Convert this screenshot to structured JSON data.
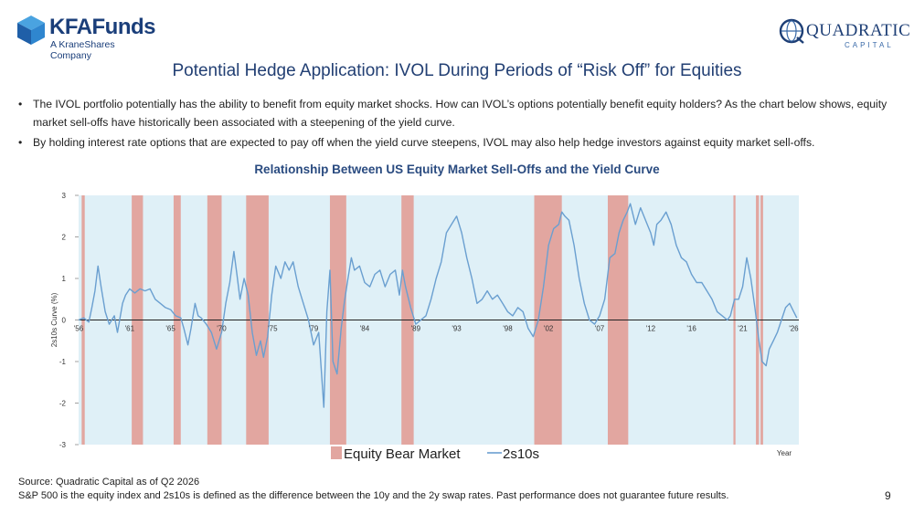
{
  "header": {
    "kfa_logo_text": "KFAFunds",
    "kfa_logo_sub": "A KraneShares Company",
    "quad_logo_text": "QUADRATIC",
    "quad_logo_sub": "CAPITAL"
  },
  "title": "Potential Hedge Application: IVOL During Periods of “Risk Off” for Equities",
  "bullets": [
    "The IVOL portfolio potentially has the ability to benefit from equity market shocks. How can IVOL’s options potentially benefit equity holders? As the chart below shows, equity market sell-offs have historically been associated with a steepening of the yield curve.",
    "By holding interest rate options that are expected to pay off when the yield curve steepens, IVOL may also help hedge investors against equity market sell-offs."
  ],
  "bullet_symbol": "•",
  "chart_data": {
    "type": "line",
    "title": "Relationship Between US Equity Market Sell-Offs and the Yield Curve",
    "xlabel": "Year",
    "ylabel": "2s10s Curve (%)",
    "xlim": [
      1956,
      2026.5
    ],
    "ylim": [
      -3,
      3
    ],
    "x_ticks": [
      {
        "x": 1956,
        "label": "'56"
      },
      {
        "x": 1961,
        "label": "'61"
      },
      {
        "x": 1965,
        "label": "'65"
      },
      {
        "x": 1970,
        "label": "'70"
      },
      {
        "x": 1975,
        "label": "'75"
      },
      {
        "x": 1979,
        "label": "'79"
      },
      {
        "x": 1984,
        "label": "'84"
      },
      {
        "x": 1989,
        "label": "'89"
      },
      {
        "x": 1993,
        "label": "'93"
      },
      {
        "x": 1998,
        "label": "'98"
      },
      {
        "x": 2002,
        "label": "'02"
      },
      {
        "x": 2007,
        "label": "'07"
      },
      {
        "x": 2012,
        "label": "'12"
      },
      {
        "x": 2016,
        "label": "'16"
      },
      {
        "x": 2021,
        "label": "'21"
      },
      {
        "x": 2026,
        "label": "'26"
      }
    ],
    "y_ticks": [
      3,
      2,
      1,
      0,
      -1,
      -2,
      -3
    ],
    "legend": [
      "Equity Bear Market",
      "2s10s"
    ],
    "legend_position": "bottom",
    "colors": {
      "plot_bg": "#dff0f7",
      "bear": "#e2a6a0",
      "line": "#6a9fd0",
      "zero": "#222222"
    },
    "bear_markets": [
      [
        1956.3,
        1956.6
      ],
      [
        1961.2,
        1962.3
      ],
      [
        1965.3,
        1966.0
      ],
      [
        1968.6,
        1970.0
      ],
      [
        1972.4,
        1974.6
      ],
      [
        1980.6,
        1982.2
      ],
      [
        1987.6,
        1988.8
      ],
      [
        2000.6,
        2003.3
      ],
      [
        2007.8,
        2009.8
      ],
      [
        2020.1,
        2020.3
      ],
      [
        2022.3,
        2022.6
      ],
      [
        2022.75,
        2023.0
      ]
    ],
    "series": [
      {
        "name": "2s10s",
        "points": [
          [
            1956.0,
            0.0
          ],
          [
            1956.5,
            0.05
          ],
          [
            1957.0,
            -0.05
          ],
          [
            1957.3,
            0.3
          ],
          [
            1957.6,
            0.7
          ],
          [
            1957.9,
            1.3
          ],
          [
            1958.2,
            0.8
          ],
          [
            1958.6,
            0.2
          ],
          [
            1959.0,
            -0.1
          ],
          [
            1959.5,
            0.1
          ],
          [
            1959.8,
            -0.3
          ],
          [
            1960.3,
            0.4
          ],
          [
            1960.6,
            0.6
          ],
          [
            1961.0,
            0.75
          ],
          [
            1961.5,
            0.65
          ],
          [
            1962.0,
            0.75
          ],
          [
            1962.5,
            0.7
          ],
          [
            1963.0,
            0.75
          ],
          [
            1963.5,
            0.5
          ],
          [
            1964.0,
            0.4
          ],
          [
            1964.5,
            0.3
          ],
          [
            1965.0,
            0.25
          ],
          [
            1965.5,
            0.1
          ],
          [
            1966.0,
            0.05
          ],
          [
            1966.3,
            -0.2
          ],
          [
            1966.7,
            -0.6
          ],
          [
            1967.0,
            -0.2
          ],
          [
            1967.4,
            0.4
          ],
          [
            1967.7,
            0.1
          ],
          [
            1968.0,
            0.05
          ],
          [
            1968.5,
            -0.1
          ],
          [
            1969.0,
            -0.3
          ],
          [
            1969.5,
            -0.7
          ],
          [
            1970.0,
            -0.3
          ],
          [
            1970.4,
            0.4
          ],
          [
            1970.8,
            0.9
          ],
          [
            1971.2,
            1.65
          ],
          [
            1971.5,
            1.1
          ],
          [
            1971.8,
            0.5
          ],
          [
            1972.2,
            1.0
          ],
          [
            1972.6,
            0.6
          ],
          [
            1973.0,
            -0.3
          ],
          [
            1973.4,
            -0.85
          ],
          [
            1973.8,
            -0.5
          ],
          [
            1974.1,
            -0.9
          ],
          [
            1974.5,
            -0.4
          ],
          [
            1974.9,
            0.6
          ],
          [
            1975.3,
            1.3
          ],
          [
            1975.8,
            1.0
          ],
          [
            1976.2,
            1.4
          ],
          [
            1976.6,
            1.2
          ],
          [
            1977.0,
            1.4
          ],
          [
            1977.5,
            0.8
          ],
          [
            1978.0,
            0.4
          ],
          [
            1978.5,
            0.0
          ],
          [
            1979.0,
            -0.6
          ],
          [
            1979.5,
            -0.3
          ],
          [
            1980.0,
            -2.1
          ],
          [
            1980.3,
            0.2
          ],
          [
            1980.6,
            1.2
          ],
          [
            1980.9,
            -1.0
          ],
          [
            1981.3,
            -1.3
          ],
          [
            1981.7,
            -0.2
          ],
          [
            1982.0,
            0.4
          ],
          [
            1982.3,
            0.9
          ],
          [
            1982.7,
            1.5
          ],
          [
            1983.0,
            1.2
          ],
          [
            1983.5,
            1.3
          ],
          [
            1984.0,
            0.9
          ],
          [
            1984.5,
            0.8
          ],
          [
            1985.0,
            1.1
          ],
          [
            1985.5,
            1.2
          ],
          [
            1986.0,
            0.8
          ],
          [
            1986.5,
            1.1
          ],
          [
            1987.0,
            1.2
          ],
          [
            1987.4,
            0.6
          ],
          [
            1987.7,
            1.2
          ],
          [
            1988.0,
            0.8
          ],
          [
            1988.5,
            0.3
          ],
          [
            1989.0,
            -0.1
          ],
          [
            1989.5,
            0.0
          ],
          [
            1990.0,
            0.1
          ],
          [
            1990.5,
            0.5
          ],
          [
            1991.0,
            1.0
          ],
          [
            1991.5,
            1.4
          ],
          [
            1992.0,
            2.1
          ],
          [
            1992.5,
            2.3
          ],
          [
            1993.0,
            2.5
          ],
          [
            1993.5,
            2.1
          ],
          [
            1994.0,
            1.5
          ],
          [
            1994.5,
            1.0
          ],
          [
            1995.0,
            0.4
          ],
          [
            1995.5,
            0.5
          ],
          [
            1996.0,
            0.7
          ],
          [
            1996.5,
            0.5
          ],
          [
            1997.0,
            0.6
          ],
          [
            1997.5,
            0.4
          ],
          [
            1998.0,
            0.2
          ],
          [
            1998.5,
            0.1
          ],
          [
            1999.0,
            0.3
          ],
          [
            1999.5,
            0.2
          ],
          [
            2000.0,
            -0.2
          ],
          [
            2000.5,
            -0.4
          ],
          [
            2001.0,
            0.0
          ],
          [
            2001.5,
            0.8
          ],
          [
            2002.0,
            1.8
          ],
          [
            2002.5,
            2.2
          ],
          [
            2003.0,
            2.3
          ],
          [
            2003.3,
            2.6
          ],
          [
            2003.6,
            2.5
          ],
          [
            2004.0,
            2.4
          ],
          [
            2004.5,
            1.8
          ],
          [
            2005.0,
            1.0
          ],
          [
            2005.5,
            0.4
          ],
          [
            2006.0,
            0.0
          ],
          [
            2006.5,
            -0.1
          ],
          [
            2007.0,
            0.1
          ],
          [
            2007.5,
            0.5
          ],
          [
            2008.0,
            1.5
          ],
          [
            2008.5,
            1.6
          ],
          [
            2008.9,
            2.1
          ],
          [
            2009.3,
            2.4
          ],
          [
            2009.7,
            2.6
          ],
          [
            2010.0,
            2.8
          ],
          [
            2010.5,
            2.3
          ],
          [
            2011.0,
            2.7
          ],
          [
            2011.5,
            2.4
          ],
          [
            2012.0,
            2.1
          ],
          [
            2012.3,
            1.8
          ],
          [
            2012.6,
            2.3
          ],
          [
            2013.0,
            2.4
          ],
          [
            2013.5,
            2.6
          ],
          [
            2014.0,
            2.3
          ],
          [
            2014.5,
            1.8
          ],
          [
            2015.0,
            1.5
          ],
          [
            2015.5,
            1.4
          ],
          [
            2016.0,
            1.1
          ],
          [
            2016.5,
            0.9
          ],
          [
            2017.0,
            0.9
          ],
          [
            2017.5,
            0.7
          ],
          [
            2018.0,
            0.5
          ],
          [
            2018.5,
            0.2
          ],
          [
            2019.0,
            0.1
          ],
          [
            2019.5,
            0.0
          ],
          [
            2019.8,
            0.1
          ],
          [
            2020.2,
            0.5
          ],
          [
            2020.6,
            0.5
          ],
          [
            2021.0,
            0.8
          ],
          [
            2021.4,
            1.5
          ],
          [
            2021.8,
            1.0
          ],
          [
            2022.2,
            0.3
          ],
          [
            2022.6,
            -0.5
          ],
          [
            2022.9,
            -1.0
          ],
          [
            2023.3,
            -1.1
          ],
          [
            2023.6,
            -0.7
          ],
          [
            2024.0,
            -0.5
          ],
          [
            2024.4,
            -0.3
          ],
          [
            2024.8,
            0.0
          ],
          [
            2025.2,
            0.3
          ],
          [
            2025.6,
            0.4
          ],
          [
            2026.0,
            0.2
          ],
          [
            2026.3,
            0.05
          ]
        ]
      }
    ]
  },
  "footer": {
    "source": "Source: Quadratic Capital as of Q2 2026",
    "disclaimer": "S&P 500 is the equity index and 2s10s is defined as the difference between the 10y and the 2y swap rates. Past performance does not guarantee future results."
  },
  "page_number": "9"
}
